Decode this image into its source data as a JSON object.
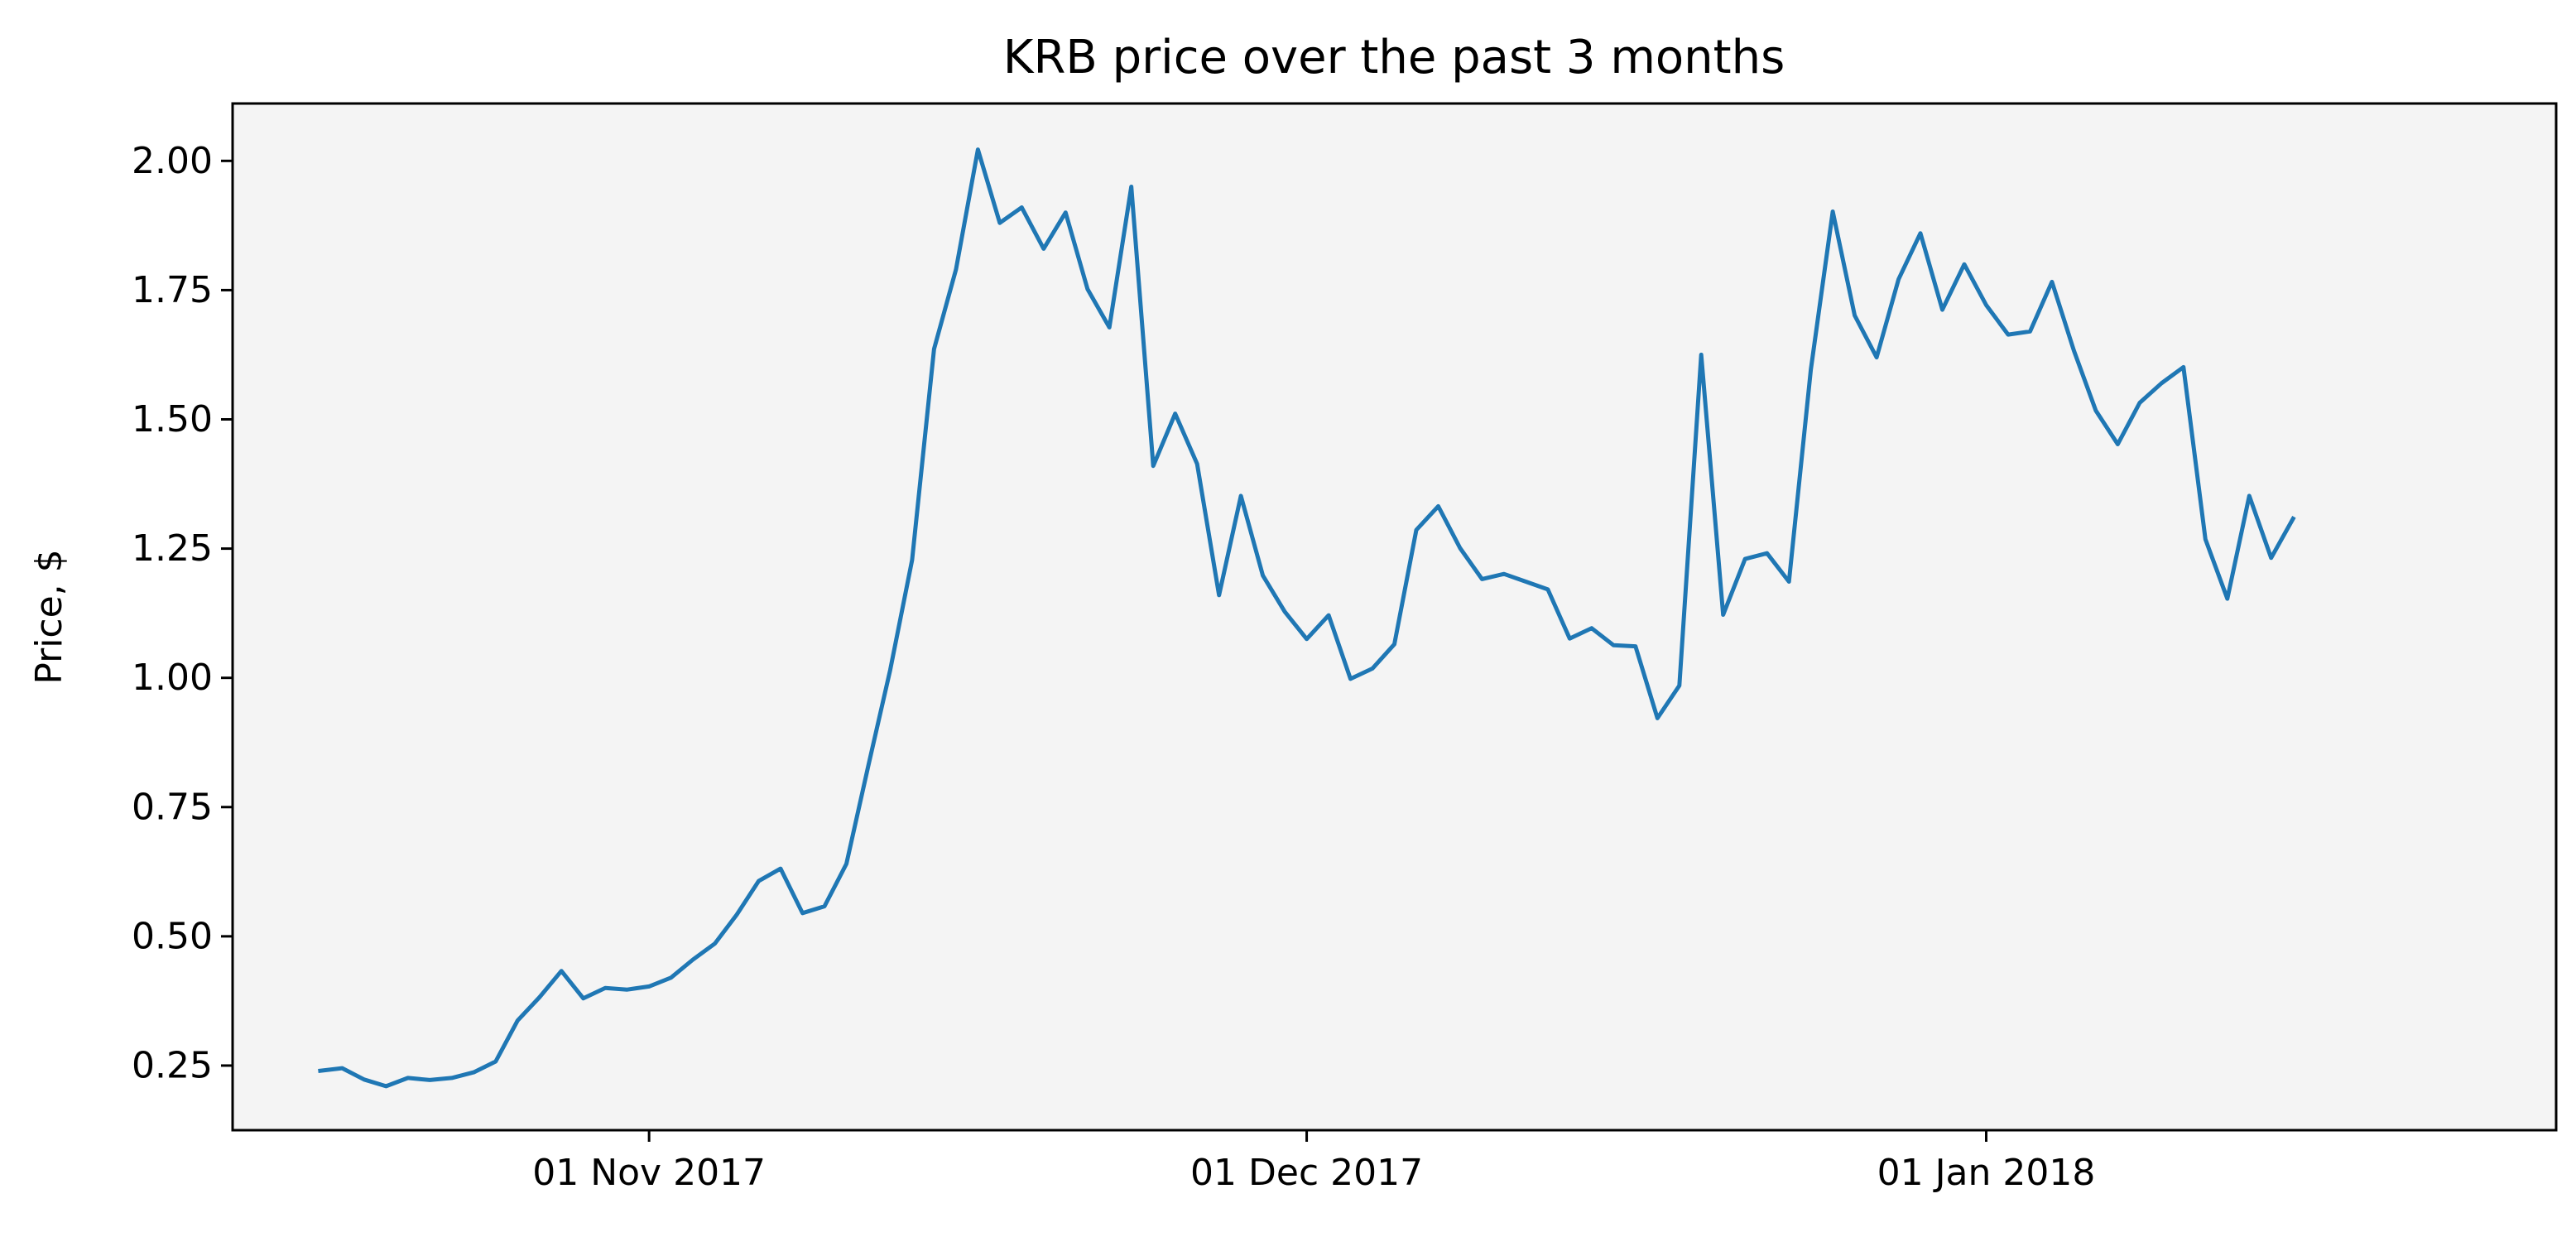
{
  "chart_data": {
    "type": "line",
    "title": "KRB price over the past 3 months",
    "xlabel": "",
    "ylabel": "Price, $",
    "x_start": "2017-10-17",
    "x_step_days": 1,
    "x_range": [
      "2017-10-13",
      "2018-01-27"
    ],
    "ylim": [
      0.125,
      2.111
    ],
    "grid": false,
    "legend": "none",
    "colors": {
      "line": "#1f77b4",
      "plot_background": "#f4f4f4",
      "axes": "#000000"
    },
    "x_ticks": [
      {
        "date": "2017-11-01",
        "label": "01 Nov 2017"
      },
      {
        "date": "2017-12-01",
        "label": "01 Dec 2017"
      },
      {
        "date": "2018-01-01",
        "label": "01 Jan 2018"
      }
    ],
    "y_ticks": [
      {
        "value": 0.25,
        "label": "0.25"
      },
      {
        "value": 0.5,
        "label": "0.50"
      },
      {
        "value": 0.75,
        "label": "0.75"
      },
      {
        "value": 1.0,
        "label": "1.00"
      },
      {
        "value": 1.25,
        "label": "1.25"
      },
      {
        "value": 1.5,
        "label": "1.50"
      },
      {
        "value": 1.75,
        "label": "1.75"
      },
      {
        "value": 2.0,
        "label": "2.00"
      }
    ],
    "series": [
      {
        "name": "KRB",
        "values": [
          0.24,
          0.245,
          0.223,
          0.21,
          0.226,
          0.222,
          0.226,
          0.237,
          0.258,
          0.337,
          0.382,
          0.433,
          0.38,
          0.4,
          0.397,
          0.403,
          0.42,
          0.455,
          0.486,
          0.542,
          0.607,
          0.631,
          0.545,
          0.558,
          0.64,
          0.83,
          1.015,
          1.228,
          1.636,
          1.79,
          2.022,
          1.88,
          1.91,
          1.83,
          1.9,
          1.752,
          1.678,
          1.95,
          1.41,
          1.511,
          1.414,
          1.16,
          1.352,
          1.198,
          1.128,
          1.075,
          1.121,
          0.998,
          1.018,
          1.065,
          1.286,
          1.332,
          1.251,
          1.191,
          1.201,
          1.186,
          1.171,
          1.076,
          1.096,
          1.063,
          1.061,
          0.922,
          0.985,
          1.625,
          1.122,
          1.23,
          1.241,
          1.186,
          1.596,
          1.902,
          1.701,
          1.62,
          1.771,
          1.86,
          1.712,
          1.8,
          1.721,
          1.664,
          1.67,
          1.766,
          1.633,
          1.517,
          1.452,
          1.532,
          1.57,
          1.601,
          1.268,
          1.153,
          1.352,
          1.232,
          1.308
        ]
      }
    ]
  }
}
